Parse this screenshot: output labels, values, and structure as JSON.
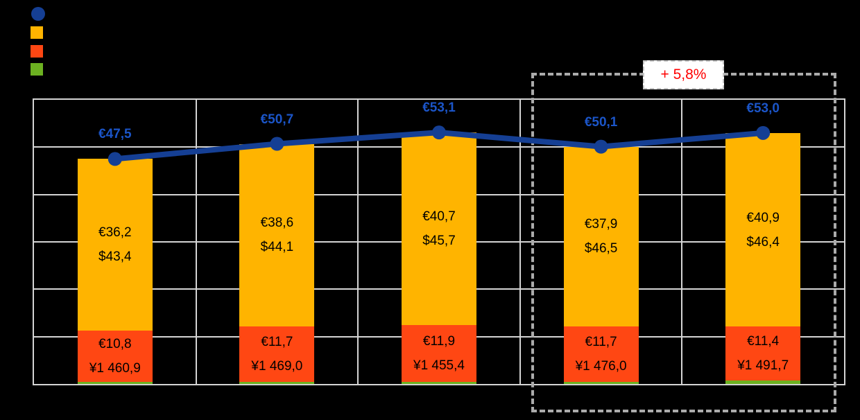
{
  "page": {
    "background": "#000000"
  },
  "legend": {
    "items": [
      {
        "shape": "circle",
        "color": "#153F94",
        "name": "line-series-marker"
      },
      {
        "shape": "square",
        "color": "#FFB400",
        "name": "orange-bar-series-marker"
      },
      {
        "shape": "square",
        "color": "#FF4713",
        "name": "red-bar-series-marker"
      },
      {
        "shape": "square",
        "color": "#6CB121",
        "name": "green-bar-series-marker"
      }
    ],
    "labels_visible": false
  },
  "annotation": {
    "text": "+ 5,8%",
    "color": "#FF0000"
  },
  "chart_data": {
    "type": "combo-stacked-bar-with-line",
    "columns": 5,
    "ylim": [
      0,
      60
    ],
    "gridline_step": 10,
    "grid": "on",
    "axis_tick_labels_visible": false,
    "line": {
      "name": "total-eur-line",
      "color": "#153F94",
      "label_color": "#1B55C8",
      "values": [
        47.5,
        50.7,
        53.1,
        50.1,
        53.0
      ],
      "labels": [
        "€47,5",
        "€50,7",
        "€53,1",
        "€50,1",
        "€53,0"
      ]
    },
    "bar_series": [
      {
        "position": "top",
        "name": "eur-usd-segment",
        "color": "#FFB400",
        "values": [
          36.2,
          38.6,
          40.7,
          37.9,
          40.9
        ],
        "labels": [
          [
            "€36,2",
            "$43,4"
          ],
          [
            "€38,6",
            "$44,1"
          ],
          [
            "€40,7",
            "$45,7"
          ],
          [
            "€37,9",
            "$46,5"
          ],
          [
            "€40,9",
            "$46,4"
          ]
        ]
      },
      {
        "position": "middle",
        "name": "eur-jpy-segment",
        "color": "#FF4713",
        "values": [
          10.8,
          11.7,
          11.9,
          11.7,
          11.4
        ],
        "labels": [
          [
            "€10,8",
            "¥1 460,9"
          ],
          [
            "€11,7",
            "¥1 469,0"
          ],
          [
            "€11,9",
            "¥1 455,4"
          ],
          [
            "€11,7",
            "¥1 476,0"
          ],
          [
            "€11,4",
            "¥1 491,7"
          ]
        ]
      },
      {
        "position": "bottom",
        "name": "green-segment",
        "color": "#6CB121",
        "values": [
          0.5,
          0.4,
          0.5,
          0.5,
          0.7
        ],
        "labels": [
          [],
          [],
          [],
          [],
          []
        ]
      }
    ],
    "highlight": {
      "columns": [
        4,
        5
      ],
      "note": "+ 5,8%",
      "box_border_color": "#ABABAB"
    },
    "grid_color": "#D5D5D5"
  }
}
